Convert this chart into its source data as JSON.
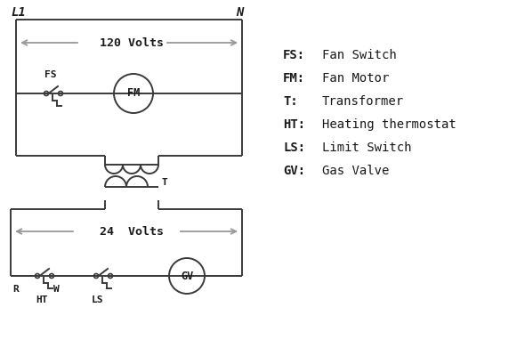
{
  "bg_color": "#ffffff",
  "line_color": "#3a3a3a",
  "arrow_color": "#999999",
  "text_color": "#1a1a1a",
  "legend_items": [
    [
      "FS:",
      "Fan Switch"
    ],
    [
      "FM:",
      "Fan Motor"
    ],
    [
      "T:",
      "Transformer"
    ],
    [
      "HT:",
      "Heating thermostat"
    ],
    [
      "LS:",
      "Limit Switch"
    ],
    [
      "GV:",
      "Gas Valve"
    ]
  ],
  "label_L1": "L1",
  "label_N": "N",
  "label_120V": "120 Volts",
  "label_24V": "24  Volts",
  "label_FS": "FS",
  "label_FM": "FM",
  "label_T": "T",
  "label_R": "R",
  "label_W": "W",
  "label_HT": "HT",
  "label_LS": "LS",
  "label_GV": "GV"
}
